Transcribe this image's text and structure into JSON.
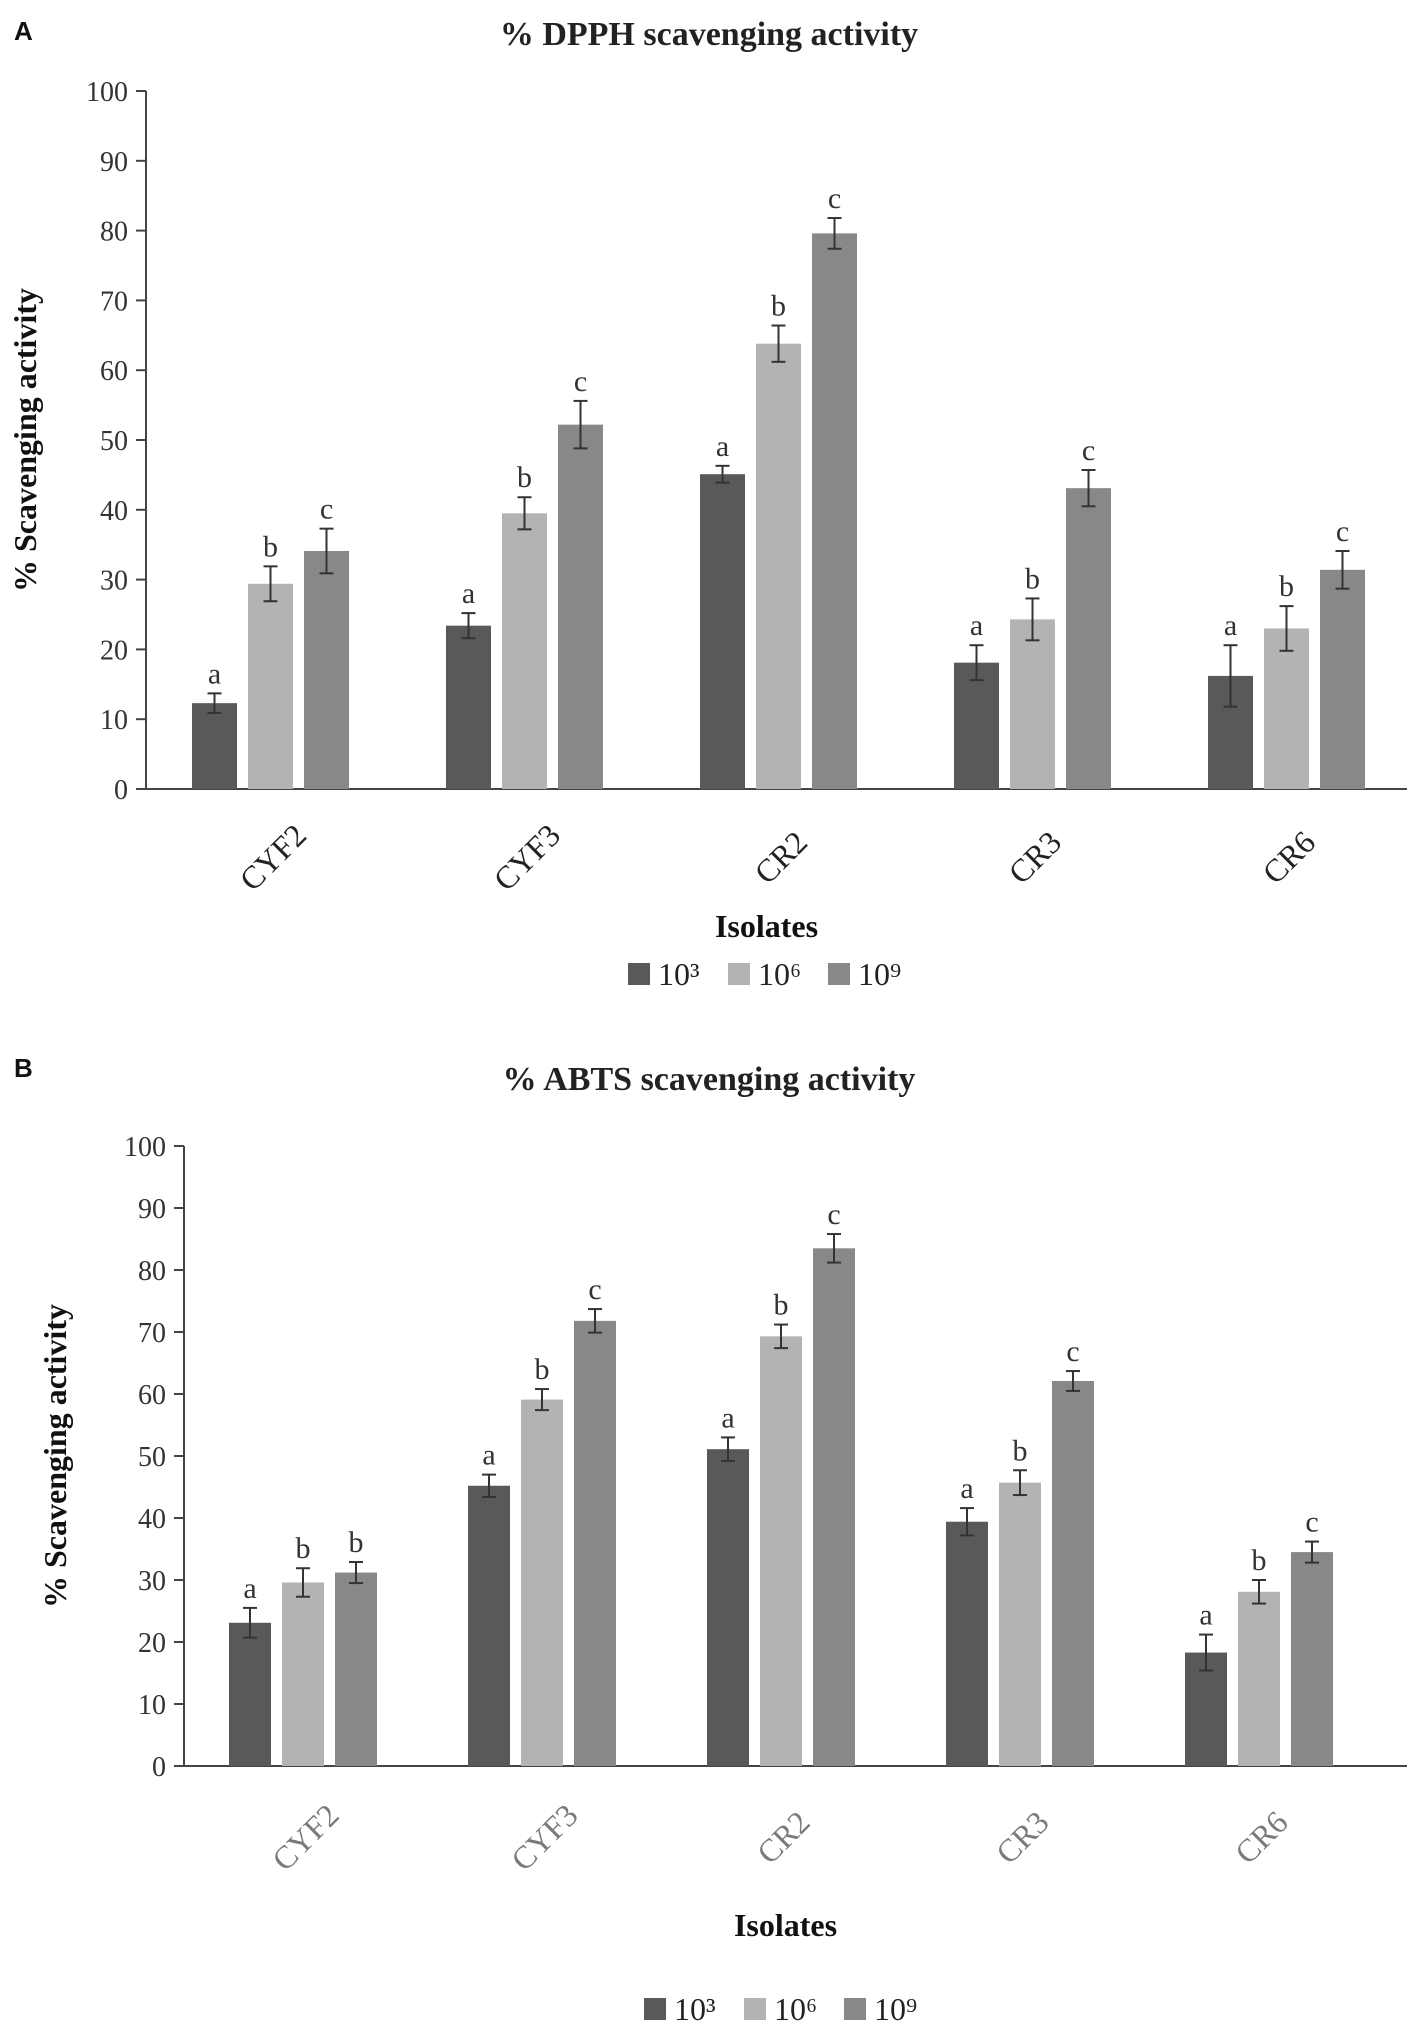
{
  "chart_data": [
    {
      "type": "bar",
      "panel": "A",
      "title": "% DPPH scavenging activity",
      "xlabel": "Isolates",
      "ylabel": "% Scavenging activity",
      "ylim": [
        0,
        100
      ],
      "yticks": [
        0,
        10,
        20,
        30,
        40,
        50,
        60,
        70,
        80,
        90,
        100
      ],
      "categories": [
        "CYF2",
        "CYF3",
        "CR2",
        "CR3",
        "CR6"
      ],
      "series": [
        {
          "name": "10³",
          "color": "#595959",
          "values": [
            12.3,
            23.4,
            45.1,
            18.1,
            16.2
          ],
          "errors": [
            1.4,
            1.8,
            1.2,
            2.5,
            4.4
          ],
          "labels": [
            "a",
            "a",
            "a",
            "a",
            "a"
          ]
        },
        {
          "name": "10⁶",
          "color": "#b3b3b3",
          "values": [
            29.4,
            39.5,
            63.8,
            24.3,
            23.0
          ],
          "errors": [
            2.5,
            2.3,
            2.6,
            3.0,
            3.2
          ],
          "labels": [
            "b",
            "b",
            "b",
            "b",
            "b"
          ]
        },
        {
          "name": "10⁹",
          "color": "#888888",
          "values": [
            34.1,
            52.2,
            79.6,
            43.1,
            31.4
          ],
          "errors": [
            3.2,
            3.4,
            2.2,
            2.6,
            2.7
          ],
          "labels": [
            "c",
            "c",
            "c",
            "c",
            "c"
          ]
        }
      ],
      "legend": "bottom"
    },
    {
      "type": "bar",
      "panel": "B",
      "title": "% ABTS scavenging activity",
      "xlabel": "Isolates",
      "ylabel": "% Scavenging activity",
      "ylim": [
        0,
        100
      ],
      "yticks": [
        0,
        10,
        20,
        30,
        40,
        50,
        60,
        70,
        80,
        90,
        100
      ],
      "categories": [
        "CYF2",
        "CYF3",
        "CR2",
        "CR3",
        "CR6"
      ],
      "series": [
        {
          "name": "10³",
          "color": "#595959",
          "values": [
            23.1,
            45.2,
            51.1,
            39.4,
            18.3
          ],
          "errors": [
            2.4,
            1.8,
            1.9,
            2.2,
            2.9
          ],
          "labels": [
            "a",
            "a",
            "a",
            "a",
            "a"
          ]
        },
        {
          "name": "10⁶",
          "color": "#b3b3b3",
          "values": [
            29.6,
            59.1,
            69.3,
            45.7,
            28.1
          ],
          "errors": [
            2.3,
            1.7,
            1.9,
            2.0,
            1.9
          ],
          "labels": [
            "b",
            "b",
            "b",
            "b",
            "b"
          ]
        },
        {
          "name": "10⁹",
          "color": "#888888",
          "values": [
            31.2,
            71.8,
            83.5,
            62.1,
            34.5
          ],
          "errors": [
            1.7,
            1.9,
            2.3,
            1.6,
            1.7
          ],
          "labels": [
            "b",
            "c",
            "c",
            "c",
            "c"
          ]
        }
      ],
      "legend": "bottom"
    }
  ]
}
